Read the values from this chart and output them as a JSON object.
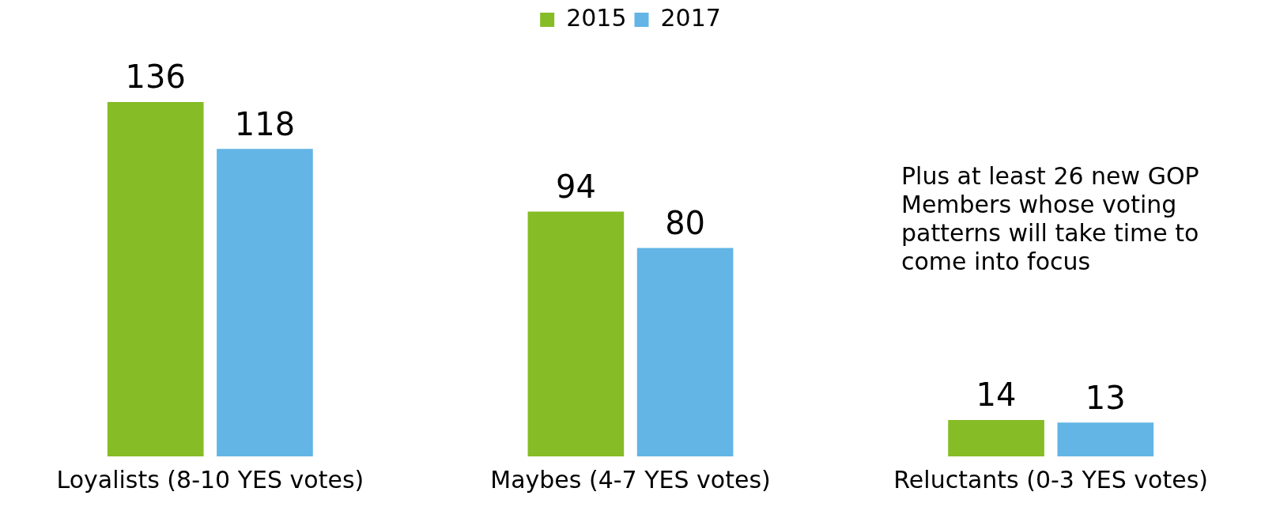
{
  "chart_data": {
    "type": "bar",
    "categories": [
      "Loyalists (8-10 YES votes)",
      "Maybes (4-7 YES votes)",
      "Reluctants (0-3 YES votes)"
    ],
    "series": [
      {
        "name": "2015",
        "color": "#86bc25",
        "values": [
          136,
          94,
          14
        ]
      },
      {
        "name": "2017",
        "color": "#62b5e5",
        "values": [
          118,
          80,
          13
        ]
      }
    ],
    "data_labels": true,
    "legend": "top",
    "grid": false,
    "annotations": [
      "Plus at least 26 new GOP Members whose voting patterns will take time to come into focus"
    ]
  }
}
